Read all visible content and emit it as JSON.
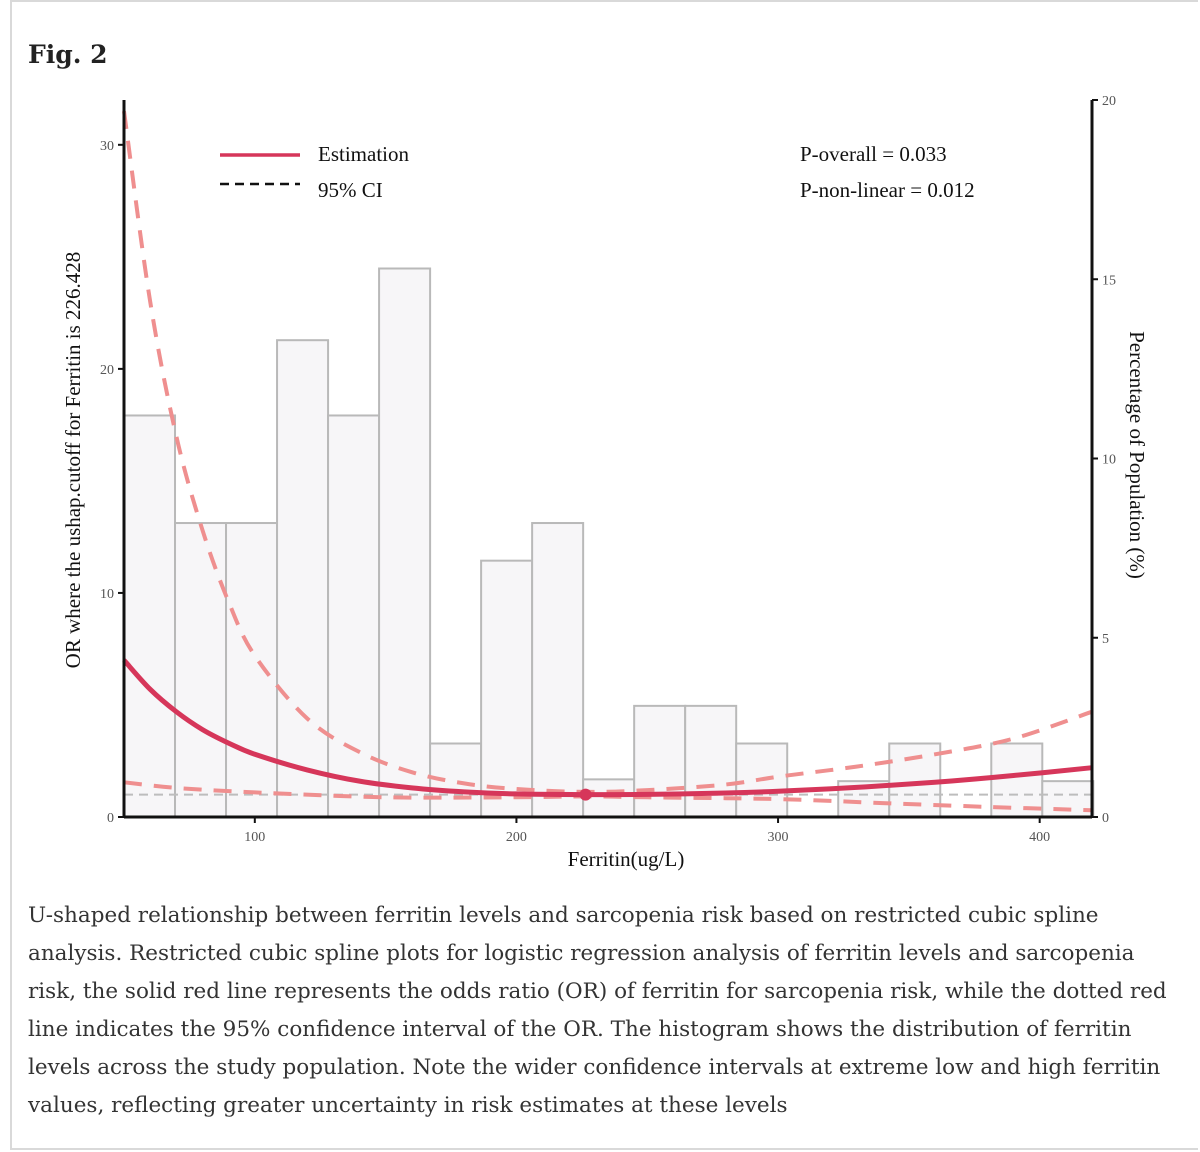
{
  "figure_label": "Fig. 2",
  "caption": "U-shaped relationship between ferritin levels and sarcopenia risk based on restricted cubic spline analysis. Restricted cubic spline plots for logistic regression analysis of ferritin levels and sarcopenia risk, the solid red line represents the odds ratio (OR) of ferritin for sarcopenia risk, while the dotted red line indicates the 95% confidence interval of the OR. The histogram shows the distribution of ferritin levels across the study population. Note the wider confidence intervals at extreme low and high ferritin values, reflecting greater uncertainty in risk estimates at these levels",
  "colors": {
    "estimation": "#d6365a",
    "ci": "#ef8f8f",
    "bar_fill": "#f7f6f8",
    "bar_stroke": "#b9b9b9",
    "reference_line": "#bdbdbd",
    "axis": "#111111"
  },
  "chart_data": {
    "type": "bar+line",
    "xlabel": "Ferritin(ug/L)",
    "ylabel_left": "OR where the ushap.cutoff for Ferritin is 226.428",
    "ylabel_right": "Percentage of Population (%)",
    "xlim": [
      50,
      420
    ],
    "ylim_left": [
      0,
      32
    ],
    "ylim_right": [
      0,
      20
    ],
    "x_ticks": [
      100,
      200,
      300,
      400
    ],
    "y_ticks_left": [
      0,
      10,
      20,
      30
    ],
    "y_ticks_right": [
      0,
      5,
      10,
      15,
      20
    ],
    "legend": {
      "estimation": "Estimation",
      "ci": "95% CI"
    },
    "annotations": {
      "p_overall": "P-overall = 0.033",
      "p_nonlinear": "P-non-linear = 0.012"
    },
    "cutoff": {
      "x": 226.428,
      "y": 1
    },
    "reference_or": 1,
    "histogram": {
      "bin_width": 19.5,
      "bin_starts": [
        50,
        69.5,
        89,
        108.5,
        128,
        147.5,
        167,
        186.5,
        206,
        225.5,
        245,
        264.5,
        284,
        303.5,
        323,
        342.5,
        362,
        381.5,
        401
      ],
      "percent": [
        11.2,
        8.2,
        8.2,
        13.3,
        11.2,
        15.3,
        2.05,
        7.15,
        8.2,
        1.05,
        3.1,
        3.1,
        2.05,
        0,
        1.0,
        2.05,
        0,
        2.05,
        1.0
      ]
    },
    "estimation": {
      "x": [
        50,
        60,
        70,
        80,
        90,
        100,
        120,
        140,
        160,
        180,
        200,
        226.428,
        250,
        280,
        300,
        330,
        360,
        390,
        420
      ],
      "y": [
        7.0,
        5.7,
        4.7,
        3.9,
        3.3,
        2.8,
        2.1,
        1.6,
        1.3,
        1.12,
        1.03,
        1.0,
        1.01,
        1.07,
        1.15,
        1.32,
        1.55,
        1.85,
        2.2
      ]
    },
    "ci_upper": {
      "x": [
        50,
        60,
        70,
        80,
        90,
        100,
        120,
        140,
        160,
        180,
        200,
        226.428,
        250,
        280,
        300,
        330,
        360,
        390,
        420
      ],
      "y": [
        31.5,
        23.0,
        17.0,
        12.8,
        9.6,
        7.2,
        4.4,
        2.9,
        2.0,
        1.5,
        1.25,
        1.12,
        1.2,
        1.45,
        1.8,
        2.25,
        2.8,
        3.5,
        4.7
      ]
    },
    "ci_lower": {
      "x": [
        50,
        70,
        100,
        150,
        200,
        226.428,
        250,
        280,
        300,
        320,
        340,
        380,
        420
      ],
      "y": [
        1.55,
        1.3,
        1.1,
        0.88,
        0.88,
        0.92,
        0.88,
        0.84,
        0.8,
        0.72,
        0.62,
        0.45,
        0.3
      ]
    }
  }
}
